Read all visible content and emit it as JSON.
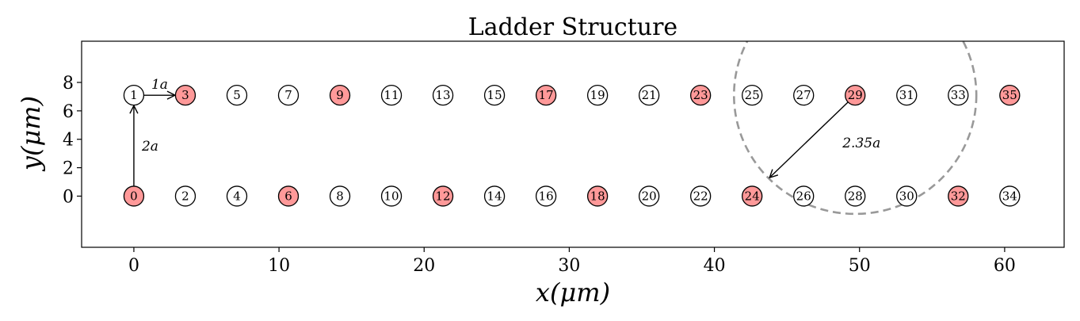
{
  "chart_data": {
    "type": "scatter",
    "title": "Ladder Structure",
    "xlabel": "x(μm)",
    "ylabel": "y(μm)",
    "xlim": [
      -3.6,
      64.1
    ],
    "ylim": [
      -3.6,
      10.9
    ],
    "xticks": [
      0,
      10,
      20,
      30,
      40,
      50,
      60
    ],
    "yticks": [
      0,
      2,
      4,
      6,
      8
    ],
    "grid": false,
    "colors": {
      "highlighted": "#ff9999",
      "normal": "#ffffff",
      "edge": "#000000",
      "circle": "#999999"
    },
    "sites": [
      {
        "id": "0",
        "x": 0,
        "y": 0,
        "highlight": true
      },
      {
        "id": "1",
        "x": 0,
        "y": 7.1,
        "highlight": false
      },
      {
        "id": "2",
        "x": 3.55,
        "y": 0,
        "highlight": false
      },
      {
        "id": "3",
        "x": 3.55,
        "y": 7.1,
        "highlight": true
      },
      {
        "id": "4",
        "x": 7.1,
        "y": 0,
        "highlight": false
      },
      {
        "id": "5",
        "x": 7.1,
        "y": 7.1,
        "highlight": false
      },
      {
        "id": "6",
        "x": 10.65,
        "y": 0,
        "highlight": true
      },
      {
        "id": "7",
        "x": 10.65,
        "y": 7.1,
        "highlight": false
      },
      {
        "id": "8",
        "x": 14.2,
        "y": 0,
        "highlight": false
      },
      {
        "id": "9",
        "x": 14.2,
        "y": 7.1,
        "highlight": true
      },
      {
        "id": "10",
        "x": 17.75,
        "y": 0,
        "highlight": false
      },
      {
        "id": "11",
        "x": 17.75,
        "y": 7.1,
        "highlight": false
      },
      {
        "id": "12",
        "x": 21.3,
        "y": 0,
        "highlight": true
      },
      {
        "id": "13",
        "x": 21.3,
        "y": 7.1,
        "highlight": false
      },
      {
        "id": "14",
        "x": 24.85,
        "y": 0,
        "highlight": false
      },
      {
        "id": "15",
        "x": 24.85,
        "y": 7.1,
        "highlight": false
      },
      {
        "id": "16",
        "x": 28.4,
        "y": 0,
        "highlight": false
      },
      {
        "id": "17",
        "x": 28.4,
        "y": 7.1,
        "highlight": true
      },
      {
        "id": "18",
        "x": 31.95,
        "y": 0,
        "highlight": true
      },
      {
        "id": "19",
        "x": 31.95,
        "y": 7.1,
        "highlight": false
      },
      {
        "id": "20",
        "x": 35.5,
        "y": 0,
        "highlight": false
      },
      {
        "id": "21",
        "x": 35.5,
        "y": 7.1,
        "highlight": false
      },
      {
        "id": "22",
        "x": 39.05,
        "y": 0,
        "highlight": false
      },
      {
        "id": "23",
        "x": 39.05,
        "y": 7.1,
        "highlight": true
      },
      {
        "id": "24",
        "x": 42.6,
        "y": 0,
        "highlight": true
      },
      {
        "id": "25",
        "x": 42.6,
        "y": 7.1,
        "highlight": false
      },
      {
        "id": "26",
        "x": 46.15,
        "y": 0,
        "highlight": false
      },
      {
        "id": "27",
        "x": 46.15,
        "y": 7.1,
        "highlight": false
      },
      {
        "id": "28",
        "x": 49.7,
        "y": 0,
        "highlight": false
      },
      {
        "id": "29",
        "x": 49.7,
        "y": 7.1,
        "highlight": true
      },
      {
        "id": "30",
        "x": 53.25,
        "y": 0,
        "highlight": false
      },
      {
        "id": "31",
        "x": 53.25,
        "y": 7.1,
        "highlight": false
      },
      {
        "id": "32",
        "x": 56.8,
        "y": 0,
        "highlight": true
      },
      {
        "id": "33",
        "x": 56.8,
        "y": 7.1,
        "highlight": false
      },
      {
        "id": "34",
        "x": 60.35,
        "y": 0,
        "highlight": false
      },
      {
        "id": "35",
        "x": 60.35,
        "y": 7.1,
        "highlight": true
      }
    ],
    "annotations": [
      {
        "label": "1a",
        "from": [
          0,
          7.1
        ],
        "to": [
          3.55,
          7.1
        ]
      },
      {
        "label": "2a",
        "from": [
          0,
          0
        ],
        "to": [
          0,
          7.1
        ]
      },
      {
        "label": "2.35a",
        "from": [
          49.7,
          7.1
        ],
        "to": [
          43.8,
          1.3
        ]
      }
    ],
    "radius_circle": {
      "center": [
        49.7,
        7.1
      ],
      "radius_x": 8.35,
      "radius_y": 8.35,
      "style": "dashed"
    }
  }
}
